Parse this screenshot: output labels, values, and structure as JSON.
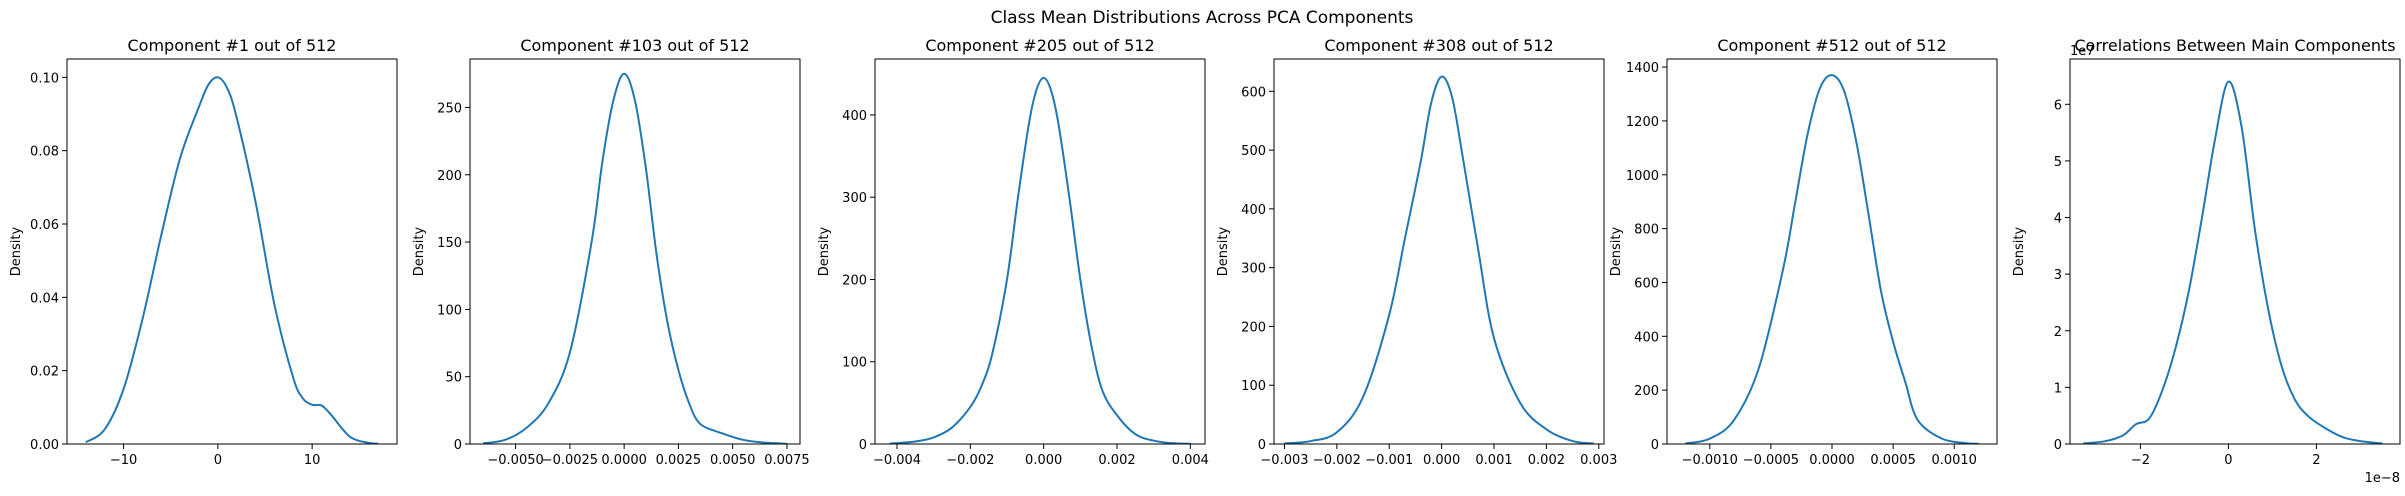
{
  "suptitle": "Class Mean Distributions Across PCA Components",
  "colors": {
    "line": "#1f77b4",
    "axes": "#000000",
    "background": "#ffffff"
  },
  "chart_data": [
    {
      "type": "line",
      "title": "Component #1 out of 512",
      "xlabel": "",
      "ylabel": "Density",
      "xlim": [
        -16,
        19
      ],
      "ylim": [
        0,
        0.105
      ],
      "xticks": [
        -10,
        0,
        10
      ],
      "xtick_labels": [
        "−10",
        "0",
        "10"
      ],
      "yticks": [
        0,
        0.02,
        0.04,
        0.06,
        0.08,
        0.1
      ],
      "ytick_labels": [
        "0.00",
        "0.02",
        "0.04",
        "0.06",
        "0.08",
        "0.10"
      ],
      "offset_label": "",
      "series": [
        {
          "x": [
            -14,
            -12,
            -10,
            -8,
            -6,
            -4,
            -2,
            -1,
            0,
            1,
            2,
            4,
            6,
            8,
            9,
            10,
            11,
            12,
            14,
            16,
            17
          ],
          "y": [
            0.0005,
            0.004,
            0.015,
            0.034,
            0.057,
            0.078,
            0.092,
            0.098,
            0.1,
            0.097,
            0.089,
            0.066,
            0.038,
            0.018,
            0.0125,
            0.0107,
            0.0105,
            0.008,
            0.002,
            0.0003,
            0.0001
          ]
        }
      ]
    },
    {
      "type": "line",
      "title": "Component #103 out of 512",
      "xlabel": "",
      "ylabel": "Density",
      "xlim": [
        -0.0071,
        0.0081
      ],
      "ylim": [
        0,
        286
      ],
      "xticks": [
        -0.005,
        -0.0025,
        0,
        0.0025,
        0.005,
        0.0075
      ],
      "xtick_labels": [
        "−0.0050",
        "−0.0025",
        "0.0000",
        "0.0025",
        "0.0050",
        "0.0075"
      ],
      "yticks": [
        0,
        50,
        100,
        150,
        200,
        250
      ],
      "ytick_labels": [
        "0",
        "50",
        "100",
        "150",
        "200",
        "250"
      ],
      "offset_label": "",
      "series": [
        {
          "x": [
            -0.0065,
            -0.0055,
            -0.0045,
            -0.0035,
            -0.0025,
            -0.0015,
            -0.001,
            -0.0005,
            0,
            0.0005,
            0.001,
            0.0015,
            0.002,
            0.0025,
            0.003,
            0.0035,
            0.0045,
            0.0055,
            0.0065,
            0.0075
          ],
          "y": [
            0.5,
            3,
            12,
            30,
            68,
            150,
            210,
            255,
            275,
            255,
            205,
            140,
            90,
            55,
            30,
            15,
            8,
            3,
            1,
            0.2
          ]
        }
      ]
    },
    {
      "type": "line",
      "title": "Component #205 out of 512",
      "xlabel": "",
      "ylabel": "Density",
      "xlim": [
        -0.0046,
        0.0044
      ],
      "ylim": [
        0,
        468
      ],
      "xticks": [
        -0.004,
        -0.002,
        0,
        0.002,
        0.004
      ],
      "xtick_labels": [
        "−0.004",
        "−0.002",
        "0.000",
        "0.002",
        "0.004"
      ],
      "yticks": [
        0,
        100,
        200,
        300,
        400
      ],
      "ytick_labels": [
        "0",
        "100",
        "200",
        "300",
        "400"
      ],
      "offset_label": "",
      "series": [
        {
          "x": [
            -0.0042,
            -0.0035,
            -0.003,
            -0.0025,
            -0.002,
            -0.0017,
            -0.0014,
            -0.001,
            -0.0007,
            -0.0004,
            -0.0002,
            0,
            0.0002,
            0.0004,
            0.0007,
            0.001,
            0.0013,
            0.0016,
            0.002,
            0.0025,
            0.003,
            0.0035,
            0.004
          ],
          "y": [
            0.5,
            3,
            8,
            20,
            45,
            70,
            110,
            200,
            300,
            390,
            430,
            445,
            430,
            390,
            300,
            200,
            120,
            65,
            35,
            12,
            4,
            1,
            0.3
          ]
        }
      ]
    },
    {
      "type": "line",
      "title": "Component #308 out of 512",
      "xlabel": "",
      "ylabel": "Density",
      "xlim": [
        -0.0032,
        0.0031
      ],
      "ylim": [
        0,
        655
      ],
      "xticks": [
        -0.003,
        -0.002,
        -0.001,
        0,
        0.001,
        0.002,
        0.003
      ],
      "xtick_labels": [
        "−0.003",
        "−0.002",
        "−0.001",
        "0.000",
        "0.001",
        "0.002",
        "0.003"
      ],
      "yticks": [
        0,
        100,
        200,
        300,
        400,
        500,
        600
      ],
      "ytick_labels": [
        "0",
        "100",
        "200",
        "300",
        "400",
        "500",
        "600"
      ],
      "offset_label": "",
      "series": [
        {
          "x": [
            -0.003,
            -0.0025,
            -0.002,
            -0.0015,
            -0.001,
            -0.0007,
            -0.0004,
            -0.0002,
            0,
            0.0002,
            0.0004,
            0.0007,
            0.001,
            0.0015,
            0.002,
            0.0025,
            0.0029
          ],
          "y": [
            1,
            5,
            20,
            80,
            220,
            350,
            480,
            580,
            625,
            590,
            490,
            330,
            180,
            70,
            25,
            5,
            1
          ]
        }
      ]
    },
    {
      "type": "line",
      "title": "Component #512 out of 512",
      "xlabel": "",
      "ylabel": "Density",
      "xlim": [
        -0.00135,
        0.00135
      ],
      "ylim": [
        0,
        1430
      ],
      "xticks": [
        -0.001,
        -0.0005,
        0,
        0.0005,
        0.001
      ],
      "xtick_labels": [
        "−0.0010",
        "−0.0005",
        "0.0000",
        "0.0005",
        "0.0010"
      ],
      "yticks": [
        0,
        200,
        400,
        600,
        800,
        1000,
        1200,
        1400
      ],
      "ytick_labels": [
        "0",
        "200",
        "400",
        "600",
        "800",
        "1000",
        "1200",
        "1400"
      ],
      "offset_label": "",
      "series": [
        {
          "x": [
            -0.0012,
            -0.001,
            -0.0008,
            -0.0006,
            -0.0004,
            -0.0003,
            -0.0002,
            -0.0001,
            0,
            0.0001,
            0.0002,
            0.0003,
            0.0004,
            0.0005,
            0.0006,
            0.0007,
            0.0009,
            0.0011,
            0.0012
          ],
          "y": [
            2,
            20,
            90,
            280,
            650,
            900,
            1150,
            1320,
            1370,
            1310,
            1120,
            850,
            570,
            380,
            230,
            90,
            20,
            3,
            1
          ]
        }
      ]
    },
    {
      "type": "line",
      "title": "Correlations Between Main Components",
      "xlabel": "",
      "ylabel": "Density",
      "xlim": [
        -3.6,
        3.9
      ],
      "ylim": [
        0,
        6.8
      ],
      "xticks": [
        -2,
        0,
        2
      ],
      "xtick_labels": [
        "−2",
        "0",
        "2"
      ],
      "yticks": [
        0,
        1,
        2,
        3,
        4,
        5,
        6
      ],
      "ytick_labels": [
        "0",
        "1",
        "2",
        "3",
        "4",
        "5",
        "6"
      ],
      "offset_label": "1e−8",
      "y_offset_label": "1e7",
      "series": [
        {
          "x": [
            -3.3,
            -2.8,
            -2.4,
            -2.1,
            -1.8,
            -1.5,
            -1.2,
            -0.9,
            -0.6,
            -0.3,
            0,
            0.3,
            0.6,
            0.9,
            1.2,
            1.5,
            1.8,
            2.2,
            2.6,
            3.0,
            3.5
          ],
          "y": [
            0.01,
            0.05,
            0.15,
            0.35,
            0.45,
            0.95,
            1.7,
            2.7,
            4.0,
            5.4,
            6.4,
            5.6,
            3.8,
            2.4,
            1.4,
            0.8,
            0.5,
            0.28,
            0.12,
            0.05,
            0.01
          ]
        }
      ]
    }
  ]
}
